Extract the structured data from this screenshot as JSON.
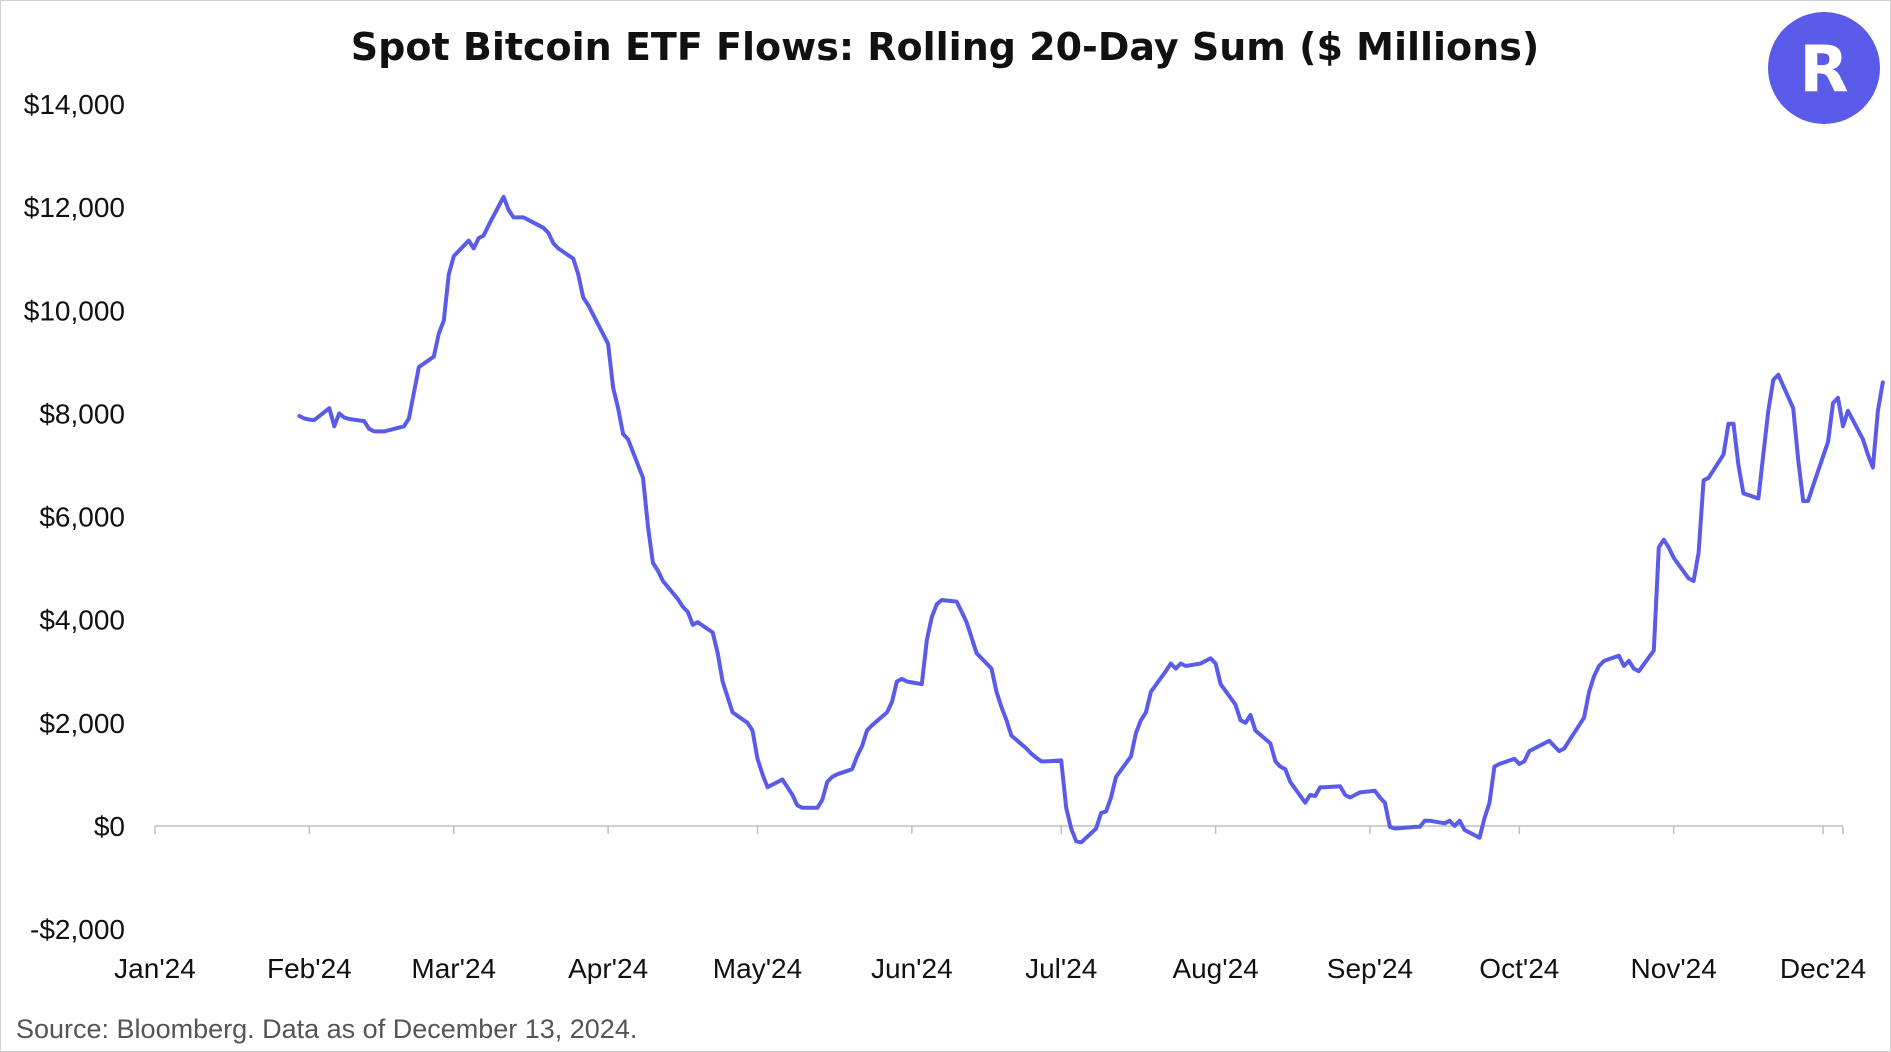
{
  "chart_data": {
    "type": "line",
    "title": "Spot Bitcoin ETF Flows: Rolling 20-Day Sum ($ Millions)",
    "xlabel": "",
    "ylabel": "",
    "ylim": [
      -2000,
      14000
    ],
    "y_ticks": [
      -2000,
      0,
      2000,
      4000,
      6000,
      8000,
      10000,
      12000,
      14000
    ],
    "y_tick_labels": [
      "-$2,000",
      "$0",
      "$2,000",
      "$4,000",
      "$6,000",
      "$8,000",
      "$10,000",
      "$12,000",
      "$14,000"
    ],
    "x_ticks": [
      "2024-01-01",
      "2024-02-01",
      "2024-03-01",
      "2024-04-01",
      "2024-05-01",
      "2024-06-01",
      "2024-07-01",
      "2024-08-01",
      "2024-09-01",
      "2024-10-01",
      "2024-11-01",
      "2024-12-01"
    ],
    "x_tick_labels": [
      "Jan'24",
      "Feb'24",
      "Mar'24",
      "Apr'24",
      "May'24",
      "Jun'24",
      "Jul'24",
      "Aug'24",
      "Sep'24",
      "Oct'24",
      "Nov'24",
      "Dec'24"
    ],
    "xlim": [
      "2024-01-01",
      "2024-12-05"
    ],
    "grid": false,
    "legend": "none",
    "series": [
      {
        "color": "#5b5bea",
        "points": [
          [
            "2024-01-30",
            7950
          ],
          [
            "2024-01-31",
            7900
          ],
          [
            "2024-02-01",
            7880
          ],
          [
            "2024-02-02",
            7870
          ],
          [
            "2024-02-05",
            8100
          ],
          [
            "2024-02-06",
            7750
          ],
          [
            "2024-02-07",
            8000
          ],
          [
            "2024-02-08",
            7920
          ],
          [
            "2024-02-09",
            7890
          ],
          [
            "2024-02-12",
            7850
          ],
          [
            "2024-02-13",
            7700
          ],
          [
            "2024-02-14",
            7650
          ],
          [
            "2024-02-15",
            7650
          ],
          [
            "2024-02-16",
            7650
          ],
          [
            "2024-02-20",
            7750
          ],
          [
            "2024-02-21",
            7900
          ],
          [
            "2024-02-22",
            8400
          ],
          [
            "2024-02-23",
            8900
          ],
          [
            "2024-02-26",
            9100
          ],
          [
            "2024-02-27",
            9550
          ],
          [
            "2024-02-28",
            9800
          ],
          [
            "2024-02-29",
            10700
          ],
          [
            "2024-03-01",
            11050
          ],
          [
            "2024-03-04",
            11350
          ],
          [
            "2024-03-05",
            11200
          ],
          [
            "2024-03-06",
            11400
          ],
          [
            "2024-03-07",
            11450
          ],
          [
            "2024-03-08",
            11650
          ],
          [
            "2024-03-11",
            12200
          ],
          [
            "2024-03-12",
            11950
          ],
          [
            "2024-03-13",
            11800
          ],
          [
            "2024-03-14",
            11800
          ],
          [
            "2024-03-15",
            11800
          ],
          [
            "2024-03-18",
            11650
          ],
          [
            "2024-03-19",
            11600
          ],
          [
            "2024-03-20",
            11500
          ],
          [
            "2024-03-21",
            11300
          ],
          [
            "2024-03-22",
            11200
          ],
          [
            "2024-03-25",
            11000
          ],
          [
            "2024-03-26",
            10700
          ],
          [
            "2024-03-27",
            10250
          ],
          [
            "2024-03-28",
            10100
          ],
          [
            "2024-04-01",
            9350
          ],
          [
            "2024-04-02",
            8500
          ],
          [
            "2024-04-03",
            8100
          ],
          [
            "2024-04-04",
            7600
          ],
          [
            "2024-04-05",
            7500
          ],
          [
            "2024-04-08",
            6750
          ],
          [
            "2024-04-09",
            5800
          ],
          [
            "2024-04-10",
            5100
          ],
          [
            "2024-04-11",
            4950
          ],
          [
            "2024-04-12",
            4750
          ],
          [
            "2024-04-15",
            4400
          ],
          [
            "2024-04-16",
            4250
          ],
          [
            "2024-04-17",
            4150
          ],
          [
            "2024-04-18",
            3900
          ],
          [
            "2024-04-19",
            3950
          ],
          [
            "2024-04-22",
            3750
          ],
          [
            "2024-04-23",
            3350
          ],
          [
            "2024-04-24",
            2800
          ],
          [
            "2024-04-25",
            2500
          ],
          [
            "2024-04-26",
            2200
          ],
          [
            "2024-04-29",
            2000
          ],
          [
            "2024-04-30",
            1850
          ],
          [
            "2024-05-01",
            1300
          ],
          [
            "2024-05-02",
            1000
          ],
          [
            "2024-05-03",
            750
          ],
          [
            "2024-05-06",
            900
          ],
          [
            "2024-05-07",
            750
          ],
          [
            "2024-05-08",
            600
          ],
          [
            "2024-05-09",
            400
          ],
          [
            "2024-05-10",
            350
          ],
          [
            "2024-05-13",
            350
          ],
          [
            "2024-05-14",
            500
          ],
          [
            "2024-05-15",
            850
          ],
          [
            "2024-05-16",
            950
          ],
          [
            "2024-05-17",
            1000
          ],
          [
            "2024-05-20",
            1100
          ],
          [
            "2024-05-21",
            1350
          ],
          [
            "2024-05-22",
            1550
          ],
          [
            "2024-05-23",
            1850
          ],
          [
            "2024-05-24",
            1950
          ],
          [
            "2024-05-27",
            2200
          ],
          [
            "2024-05-28",
            2400
          ],
          [
            "2024-05-29",
            2800
          ],
          [
            "2024-05-30",
            2850
          ],
          [
            "2024-05-31",
            2800
          ],
          [
            "2024-06-03",
            2750
          ],
          [
            "2024-06-04",
            3600
          ],
          [
            "2024-06-05",
            4050
          ],
          [
            "2024-06-06",
            4300
          ],
          [
            "2024-06-07",
            4380
          ],
          [
            "2024-06-10",
            4350
          ],
          [
            "2024-06-11",
            4150
          ],
          [
            "2024-06-12",
            3950
          ],
          [
            "2024-06-13",
            3650
          ],
          [
            "2024-06-14",
            3350
          ],
          [
            "2024-06-17",
            3050
          ],
          [
            "2024-06-18",
            2600
          ],
          [
            "2024-06-19",
            2300
          ],
          [
            "2024-06-20",
            2050
          ],
          [
            "2024-06-21",
            1750
          ],
          [
            "2024-06-24",
            1500
          ],
          [
            "2024-06-25",
            1400
          ],
          [
            "2024-06-26",
            1320
          ],
          [
            "2024-06-27",
            1250
          ],
          [
            "2024-06-28",
            1250
          ],
          [
            "2024-07-01",
            1270
          ],
          [
            "2024-07-02",
            350
          ],
          [
            "2024-07-03",
            -50
          ],
          [
            "2024-07-04",
            -300
          ],
          [
            "2024-07-05",
            -320
          ],
          [
            "2024-07-08",
            -50
          ],
          [
            "2024-07-09",
            250
          ],
          [
            "2024-07-10",
            280
          ],
          [
            "2024-07-11",
            550
          ],
          [
            "2024-07-12",
            950
          ],
          [
            "2024-07-15",
            1350
          ],
          [
            "2024-07-16",
            1800
          ],
          [
            "2024-07-17",
            2050
          ],
          [
            "2024-07-18",
            2200
          ],
          [
            "2024-07-19",
            2600
          ],
          [
            "2024-07-22",
            3000
          ],
          [
            "2024-07-23",
            3150
          ],
          [
            "2024-07-24",
            3050
          ],
          [
            "2024-07-25",
            3150
          ],
          [
            "2024-07-26",
            3100
          ],
          [
            "2024-07-29",
            3150
          ],
          [
            "2024-07-30",
            3200
          ],
          [
            "2024-07-31",
            3250
          ],
          [
            "2024-08-01",
            3150
          ],
          [
            "2024-08-02",
            2750
          ],
          [
            "2024-08-05",
            2350
          ],
          [
            "2024-08-06",
            2050
          ],
          [
            "2024-08-07",
            2000
          ],
          [
            "2024-08-08",
            2150
          ],
          [
            "2024-08-09",
            1850
          ],
          [
            "2024-08-12",
            1600
          ],
          [
            "2024-08-13",
            1250
          ],
          [
            "2024-08-14",
            1150
          ],
          [
            "2024-08-15",
            1100
          ],
          [
            "2024-08-16",
            850
          ],
          [
            "2024-08-19",
            450
          ],
          [
            "2024-08-20",
            600
          ],
          [
            "2024-08-21",
            580
          ],
          [
            "2024-08-22",
            750
          ],
          [
            "2024-08-23",
            750
          ],
          [
            "2024-08-26",
            770
          ],
          [
            "2024-08-27",
            600
          ],
          [
            "2024-08-28",
            550
          ],
          [
            "2024-08-29",
            600
          ],
          [
            "2024-08-30",
            650
          ],
          [
            "2024-09-02",
            680
          ],
          [
            "2024-09-03",
            550
          ],
          [
            "2024-09-04",
            450
          ],
          [
            "2024-09-05",
            -20
          ],
          [
            "2024-09-06",
            -50
          ],
          [
            "2024-09-09",
            -30
          ],
          [
            "2024-09-10",
            -20
          ],
          [
            "2024-09-11",
            -20
          ],
          [
            "2024-09-12",
            100
          ],
          [
            "2024-09-13",
            100
          ],
          [
            "2024-09-16",
            50
          ],
          [
            "2024-09-17",
            100
          ],
          [
            "2024-09-18",
            0
          ],
          [
            "2024-09-19",
            100
          ],
          [
            "2024-09-20",
            -80
          ],
          [
            "2024-09-23",
            -230
          ],
          [
            "2024-09-24",
            150
          ],
          [
            "2024-09-25",
            450
          ],
          [
            "2024-09-26",
            1150
          ],
          [
            "2024-09-27",
            1200
          ],
          [
            "2024-09-30",
            1300
          ],
          [
            "2024-10-01",
            1200
          ],
          [
            "2024-10-02",
            1250
          ],
          [
            "2024-10-03",
            1450
          ],
          [
            "2024-10-04",
            1500
          ],
          [
            "2024-10-07",
            1650
          ],
          [
            "2024-10-08",
            1550
          ],
          [
            "2024-10-09",
            1450
          ],
          [
            "2024-10-10",
            1500
          ],
          [
            "2024-10-11",
            1650
          ],
          [
            "2024-10-14",
            2100
          ],
          [
            "2024-10-15",
            2600
          ],
          [
            "2024-10-16",
            2900
          ],
          [
            "2024-10-17",
            3100
          ],
          [
            "2024-10-18",
            3200
          ],
          [
            "2024-10-21",
            3300
          ],
          [
            "2024-10-22",
            3100
          ],
          [
            "2024-10-23",
            3200
          ],
          [
            "2024-10-24",
            3050
          ],
          [
            "2024-10-25",
            3000
          ],
          [
            "2024-10-28",
            3400
          ],
          [
            "2024-10-29",
            5400
          ],
          [
            "2024-10-30",
            5550
          ],
          [
            "2024-10-31",
            5400
          ],
          [
            "2024-11-01",
            5200
          ],
          [
            "2024-11-04",
            4800
          ],
          [
            "2024-11-05",
            4750
          ],
          [
            "2024-11-06",
            5300
          ],
          [
            "2024-11-07",
            6700
          ],
          [
            "2024-11-08",
            6750
          ],
          [
            "2024-11-11",
            7200
          ],
          [
            "2024-11-12",
            7800
          ],
          [
            "2024-11-13",
            7800
          ],
          [
            "2024-11-14",
            7000
          ],
          [
            "2024-11-15",
            6450
          ],
          [
            "2024-11-18",
            6350
          ],
          [
            "2024-11-19",
            7200
          ],
          [
            "2024-11-20",
            8050
          ],
          [
            "2024-11-21",
            8650
          ],
          [
            "2024-11-22",
            8750
          ],
          [
            "2024-11-25",
            8100
          ],
          [
            "2024-11-26",
            7100
          ],
          [
            "2024-11-27",
            6300
          ],
          [
            "2024-11-28",
            6300
          ],
          [
            "2024-11-29",
            6600
          ],
          [
            "2024-12-02",
            7450
          ],
          [
            "2024-12-03",
            8200
          ],
          [
            "2024-12-04",
            8300
          ],
          [
            "2024-12-05",
            7750
          ],
          [
            "2024-12-06",
            8050
          ],
          [
            "2024-12-09",
            7500
          ],
          [
            "2024-12-10",
            7200
          ],
          [
            "2024-12-11",
            6950
          ],
          [
            "2024-12-12",
            8050
          ],
          [
            "2024-12-13",
            8600
          ]
        ]
      }
    ]
  },
  "footer": {
    "source": "Source: Bloomberg. Data as of December 13, 2024."
  },
  "logo": {
    "letter": "R",
    "color": "#5b5bea"
  }
}
